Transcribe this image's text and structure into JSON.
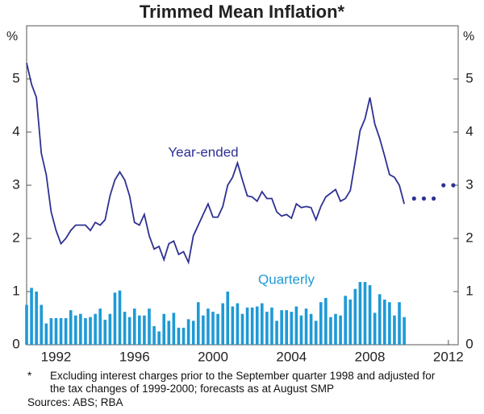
{
  "chart_data": {
    "type": "bar-line",
    "title": "Trimmed Mean Inflation*",
    "y_label": "%",
    "y2_label": "%",
    "xlim": [
      1990.5,
      2012.5
    ],
    "xticks": [
      1992,
      1996,
      2000,
      2004,
      2008,
      2012
    ],
    "ylim": [
      0,
      6
    ],
    "yticks": [
      0,
      1,
      2,
      3,
      4,
      5
    ],
    "y2lim": [
      0,
      6
    ],
    "y2ticks": [
      0,
      1,
      2,
      3,
      4,
      5
    ],
    "x_start": 1990.5,
    "x_step": 0.25,
    "series": [
      {
        "name": "Year-ended",
        "kind": "line",
        "color": "#2e3192",
        "values": [
          5.3,
          4.9,
          4.65,
          3.6,
          3.2,
          2.5,
          2.15,
          1.9,
          2.0,
          2.15,
          2.25,
          2.25,
          2.25,
          2.15,
          2.3,
          2.25,
          2.35,
          2.8,
          3.1,
          3.25,
          3.1,
          2.8,
          2.3,
          2.25,
          2.45,
          2.05,
          1.8,
          1.85,
          1.6,
          1.9,
          1.95,
          1.7,
          1.75,
          1.55,
          2.05,
          2.25,
          2.45,
          2.65,
          2.4,
          2.4,
          2.6,
          3.0,
          3.15,
          3.42,
          3.1,
          2.8,
          2.78,
          2.7,
          2.88,
          2.75,
          2.75,
          2.5,
          2.42,
          2.45,
          2.38,
          2.65,
          2.58,
          2.6,
          2.58,
          2.35,
          2.6,
          2.78,
          2.85,
          2.92,
          2.7,
          2.75,
          2.9,
          3.45,
          4.03,
          4.25,
          4.65,
          4.15,
          3.88,
          3.55,
          3.2,
          3.15,
          3.0,
          2.65
        ]
      },
      {
        "name": "Quarterly",
        "kind": "bar",
        "color": "#1e9ad6",
        "values": [
          0.75,
          1.07,
          1.0,
          0.75,
          0.4,
          0.5,
          0.5,
          0.5,
          0.5,
          0.65,
          0.55,
          0.58,
          0.5,
          0.52,
          0.58,
          0.68,
          0.47,
          0.58,
          0.98,
          1.02,
          0.62,
          0.52,
          0.68,
          0.55,
          0.55,
          0.68,
          0.35,
          0.25,
          0.58,
          0.45,
          0.6,
          0.32,
          0.32,
          0.48,
          0.45,
          0.8,
          0.55,
          0.68,
          0.62,
          0.58,
          0.78,
          1.0,
          0.72,
          0.78,
          0.58,
          0.7,
          0.7,
          0.72,
          0.78,
          0.62,
          0.7,
          0.45,
          0.65,
          0.65,
          0.62,
          0.72,
          0.55,
          0.68,
          0.58,
          0.45,
          0.8,
          0.88,
          0.52,
          0.58,
          0.55,
          0.92,
          0.85,
          1.05,
          1.18,
          1.18,
          1.12,
          0.6,
          0.95,
          0.85,
          0.8,
          0.55,
          0.8,
          0.52
        ]
      }
    ],
    "forecast": {
      "color": "#2e3192",
      "x": [
        2010.25,
        2010.75,
        2011.25,
        2011.75,
        2012.25
      ],
      "values": [
        2.75,
        2.75,
        2.75,
        3,
        3
      ]
    },
    "footnote_marker": "*",
    "footnote": "Excluding interest charges prior to the September quarter 1998 and adjusted for the tax changes of 1999-2000; forecasts as at August SMP",
    "sources": "Sources: ABS; RBA"
  }
}
